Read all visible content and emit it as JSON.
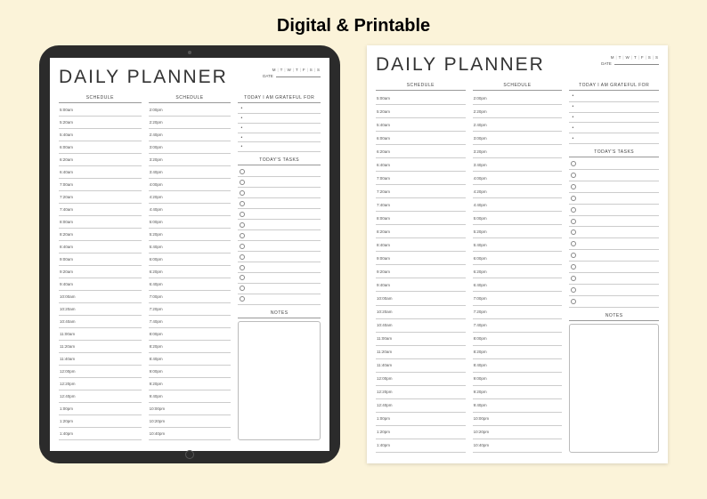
{
  "heading": "Digital & Printable",
  "planner": {
    "title": "DAILY PLANNER",
    "days": [
      "M",
      "T",
      "W",
      "T",
      "F",
      "S",
      "S"
    ],
    "date_label": "DATE",
    "col1": {
      "header": "SCHEDULE",
      "times": [
        "5:00am",
        "5:20am",
        "5:40am",
        "6:00am",
        "6:20am",
        "6:40am",
        "7:00am",
        "7:20am",
        "7:40am",
        "8:00am",
        "8:20am",
        "8:40am",
        "9:00am",
        "9:20am",
        "9:40am",
        "10:00am",
        "10:20am",
        "10:40am",
        "11:00am",
        "11:20am",
        "11:40am",
        "12:00pm",
        "12:20pm",
        "12:40pm",
        "1:00pm",
        "1:20pm",
        "1:40pm"
      ]
    },
    "col2": {
      "header": "SCHEDULE",
      "times": [
        "2:00pm",
        "2:20pm",
        "2:40pm",
        "3:00pm",
        "3:20pm",
        "3:40pm",
        "4:00pm",
        "4:20pm",
        "4:40pm",
        "5:00pm",
        "5:20pm",
        "5:40pm",
        "6:00pm",
        "6:20pm",
        "6:40pm",
        "7:00pm",
        "7:20pm",
        "7:40pm",
        "8:00pm",
        "8:20pm",
        "8:40pm",
        "9:00pm",
        "9:20pm",
        "9:40pm",
        "10:00pm",
        "10:20pm",
        "10:40pm"
      ]
    },
    "grateful": {
      "header": "TODAY I AM GRATEFUL FOR",
      "rows": 5
    },
    "tasks": {
      "header": "TODAY'S TASKS",
      "rows": 13
    },
    "notes": {
      "header": "NOTES"
    }
  },
  "colors": {
    "page_bg": "#fbf3d9",
    "ipad_frame": "#2b2b2b",
    "sheet_bg": "#ffffff",
    "text": "#333333",
    "line": "#cccccc"
  }
}
